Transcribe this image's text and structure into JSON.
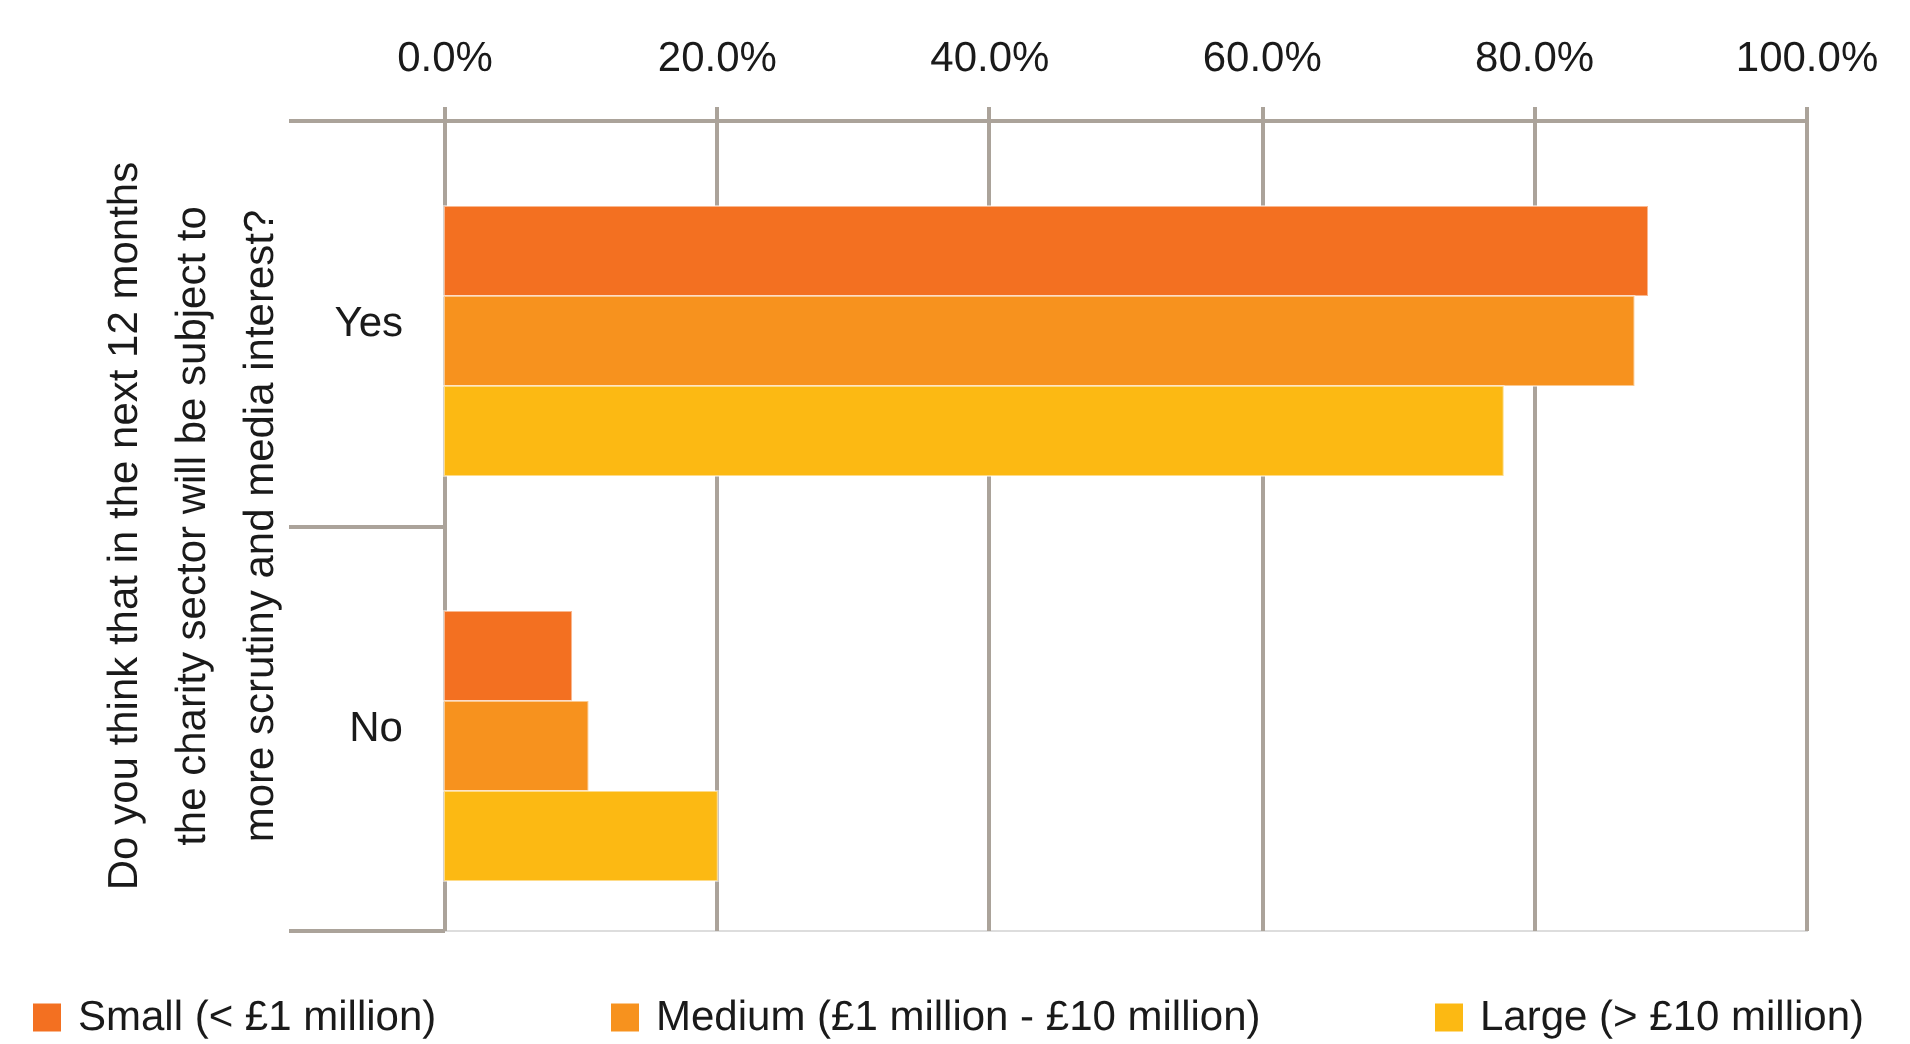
{
  "chart_data": {
    "type": "bar",
    "orientation": "horizontal",
    "ylabel": "Do you think that in the next 12 months the charity sector will be subject to more scrutiny and media interest?",
    "categories": [
      "Yes",
      "No"
    ],
    "series": [
      {
        "name": "Small (< £1 million)",
        "color": "#f37021",
        "values": [
          88.4,
          9.4
        ]
      },
      {
        "name": "Medium (£1 million - £10 million)",
        "color": "#f7921e",
        "values": [
          87.4,
          10.6
        ]
      },
      {
        "name": "Large (> £10 million)",
        "color": "#fcb913",
        "values": [
          77.8,
          20.1
        ]
      }
    ],
    "xlim": [
      0,
      100
    ],
    "xticks": [
      {
        "value": 0,
        "label": "0.0%"
      },
      {
        "value": 20,
        "label": "20.0%"
      },
      {
        "value": 40,
        "label": "40.0%"
      },
      {
        "value": 60,
        "label": "60.0%"
      },
      {
        "value": 80,
        "label": "80.0%"
      },
      {
        "value": 100,
        "label": "100.0%"
      }
    ],
    "grid": "x",
    "legend": "bottom"
  }
}
